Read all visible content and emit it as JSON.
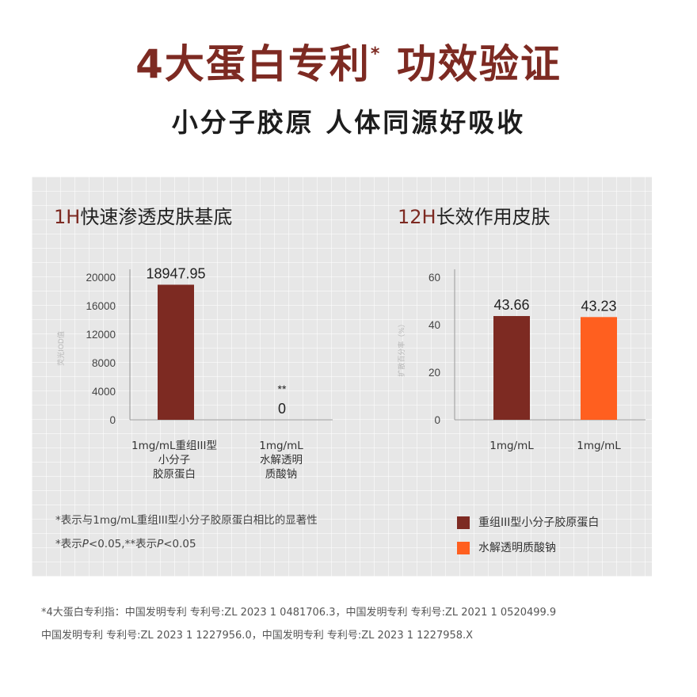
{
  "header": {
    "title": "4大蛋白专利",
    "title_mark": "*",
    "title_suffix": "功效验证",
    "subtitle": "小分子胶原 人体同源好吸收"
  },
  "colors": {
    "brand": "#7d2a22",
    "series_1": "#7d2a22",
    "series_2": "#ff5f1f"
  },
  "chart_left": {
    "title_accent": "1H",
    "title_rest": "快速渗透皮肤基底",
    "categories": [
      "1mg/mL重组III型\n小分子\n胶原蛋白",
      "1mg/mL\n水解透明\n质酸钠"
    ],
    "annotation_2": "**"
  },
  "chart_right": {
    "title_accent": "12H",
    "title_rest": "长效作用皮肤",
    "categories": [
      "1mg/mL",
      "1mg/mL"
    ]
  },
  "notes": {
    "line1": "*表示与1mg/mL重组III型小分子胶原蛋白相比的显著性",
    "line2_a": "*表示",
    "line2_b": "P",
    "line2_c": "<0.05,**表示",
    "line2_d": "P",
    "line2_e": "<0.05"
  },
  "legend": {
    "item1": "重组III型小分子胶原蛋白",
    "item2": "水解透明质酸钠"
  },
  "footnotes": {
    "line1": "*4大蛋白专利指：中国发明专利 专利号:ZL 2023 1 0481706.3，中国发明专利 专利号:ZL 2021 1 0520499.9",
    "line2": "中国发明专利 专利号:ZL 2023 1 1227956.0，中国发明专利 专利号:ZL 2023 1 1227958.X"
  },
  "chart_data": [
    {
      "type": "bar",
      "title": "1H快速渗透皮肤基底",
      "categories": [
        "1mg/mL重组III型小分子胶原蛋白",
        "1mg/mL水解透明质酸钠"
      ],
      "values": [
        18947.95,
        0
      ],
      "data_labels": [
        "18947.95",
        "0"
      ],
      "ylabel": "荧光IOD值",
      "ylim": [
        0,
        20000
      ],
      "yticks": [
        0,
        4000,
        8000,
        12000,
        16000,
        20000
      ],
      "colors": [
        "#7d2a22",
        "#7d2a22"
      ],
      "grid": false
    },
    {
      "type": "bar",
      "title": "12H长效作用皮肤",
      "categories": [
        "1mg/mL",
        "1mg/mL"
      ],
      "series": [
        {
          "name": "重组III型小分子胶原蛋白",
          "values": [
            43.66,
            null
          ]
        },
        {
          "name": "水解透明质酸钠",
          "values": [
            null,
            43.23
          ]
        }
      ],
      "values": [
        43.66,
        43.23
      ],
      "data_labels": [
        "43.66",
        "43.23"
      ],
      "ylabel": "扩散百分率（%）",
      "ylim": [
        0,
        60
      ],
      "yticks": [
        0,
        20,
        40,
        60
      ],
      "colors": [
        "#7d2a22",
        "#ff5f1f"
      ],
      "legend": "bottom-right",
      "grid": false
    }
  ]
}
